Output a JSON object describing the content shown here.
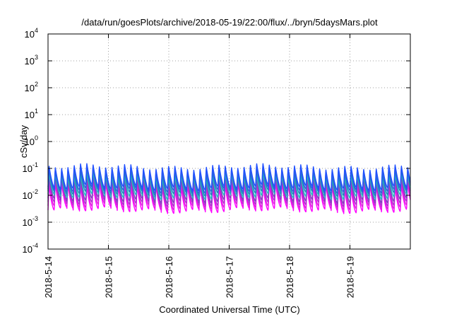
{
  "chart_data": {
    "type": "line",
    "title": "/data/run/goesPlots/archive/2018-05-19/22:00/flux/../bryn/5daysMars.plot",
    "xlabel": "Coordinated Universal Time (UTC)",
    "ylabel": "cSv/day",
    "x_range_days": [
      0,
      6
    ],
    "x_ticks": [
      {
        "label": "2018-5-14",
        "value": 0
      },
      {
        "label": "2018-5-15",
        "value": 1
      },
      {
        "label": "2018-5-16",
        "value": 2
      },
      {
        "label": "2018-5-17",
        "value": 3
      },
      {
        "label": "2018-5-18",
        "value": 4
      },
      {
        "label": "2018-5-19",
        "value": 5
      }
    ],
    "y_scale": "log",
    "ylim": [
      0.0001,
      10000
    ],
    "y_ticks": [
      {
        "base": "10",
        "exp": "4",
        "value": 10000
      },
      {
        "base": "10",
        "exp": "3",
        "value": 1000
      },
      {
        "base": "10",
        "exp": "2",
        "value": 100
      },
      {
        "base": "10",
        "exp": "1",
        "value": 10
      },
      {
        "base": "10",
        "exp": "0",
        "value": 1
      },
      {
        "base": "10",
        "exp": "-1",
        "value": 0.1
      },
      {
        "base": "10",
        "exp": "-2",
        "value": 0.01
      },
      {
        "base": "10",
        "exp": "-3",
        "value": 0.001
      },
      {
        "base": "10",
        "exp": "-4",
        "value": 0.0001
      }
    ],
    "grid": true,
    "cycles_per_day": 9.6,
    "series": [
      {
        "color": "#ff00ff",
        "peak": 0.022,
        "trough": 0.0028
      },
      {
        "color": "#e020e0",
        "peak": 0.028,
        "trough": 0.0038
      },
      {
        "color": "#b030d0",
        "peak": 0.035,
        "trough": 0.005
      },
      {
        "color": "#8040c0",
        "peak": 0.045,
        "trough": 0.0065
      },
      {
        "color": "#20c0c0",
        "peak": 0.055,
        "trough": 0.009
      },
      {
        "color": "#2080c0",
        "peak": 0.075,
        "trough": 0.012
      },
      {
        "color": "#3060e0",
        "peak": 0.1,
        "trough": 0.015
      },
      {
        "color": "#2050ff",
        "peak": 0.12,
        "trough": 0.019
      }
    ]
  }
}
